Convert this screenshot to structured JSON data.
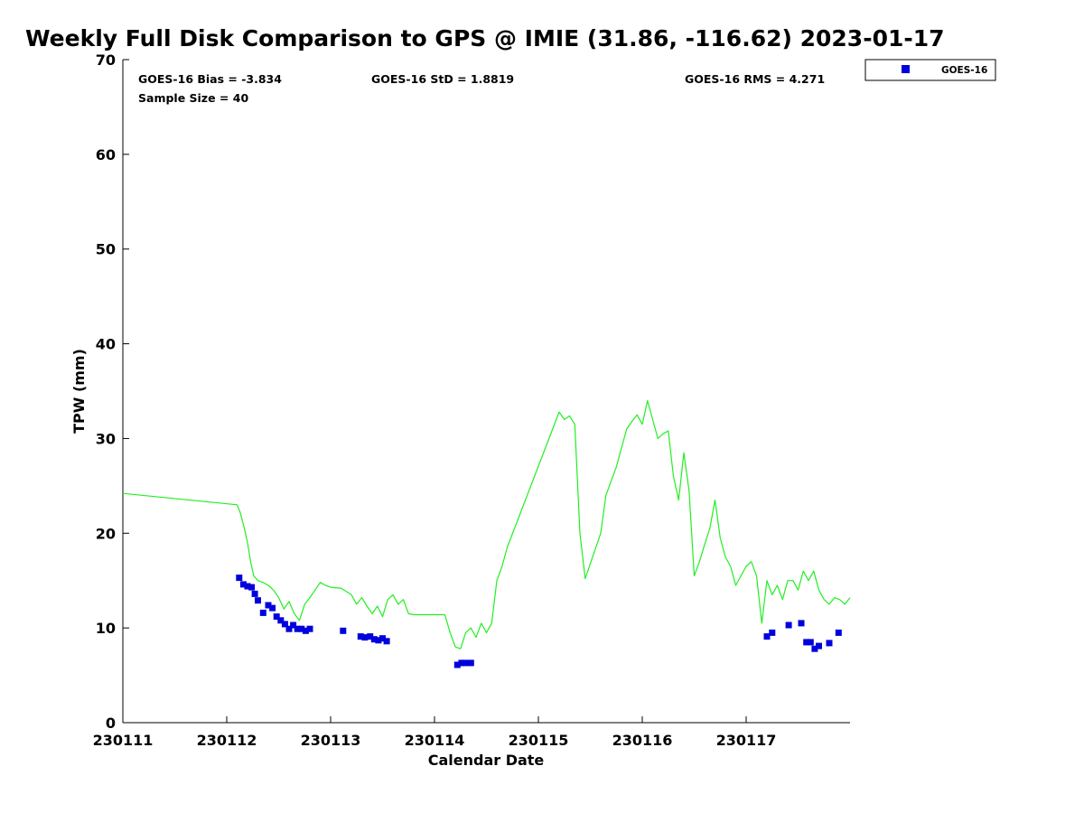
{
  "chart_data": {
    "type": "line+scatter",
    "title": "Weekly Full Disk Comparison to GPS @ IMIE (31.86, -116.62) 2023-01-17",
    "xlabel": "Calendar Date",
    "ylabel": "TPW (mm)",
    "xlim": [
      0,
      7
    ],
    "ylim": [
      0,
      70
    ],
    "x_unit": "days since 230111 00:00",
    "xticks": [
      {
        "v": 0,
        "label": "230111"
      },
      {
        "v": 1,
        "label": "230112"
      },
      {
        "v": 2,
        "label": "230113"
      },
      {
        "v": 3,
        "label": "230114"
      },
      {
        "v": 4,
        "label": "230115"
      },
      {
        "v": 5,
        "label": "230116"
      },
      {
        "v": 6,
        "label": "230117"
      }
    ],
    "yticks": [
      0,
      10,
      20,
      30,
      40,
      50,
      60,
      70
    ],
    "stats": {
      "bias": "GOES-16 Bias = -3.834",
      "std": "GOES-16 StD = 1.8819",
      "rms": "GOES-16 RMS = 4.271",
      "sample": "Sample Size = 40"
    },
    "legend": {
      "label": "GOES-16",
      "position": "outside-top-right"
    },
    "colors": {
      "gps_line": "#22ee22",
      "goes_marker": "#0000dd"
    },
    "gps_line": {
      "name": "GPS",
      "x": [
        0.0,
        1.1,
        1.13,
        1.17,
        1.2,
        1.23,
        1.26,
        1.3,
        1.35,
        1.4,
        1.45,
        1.5,
        1.55,
        1.6,
        1.65,
        1.7,
        1.75,
        1.8,
        1.85,
        1.9,
        1.95,
        2.0,
        2.1,
        2.2,
        2.25,
        2.3,
        2.35,
        2.4,
        2.45,
        2.5,
        2.55,
        2.6,
        2.65,
        2.7,
        2.75,
        2.8,
        2.85,
        2.9,
        3.1,
        3.15,
        3.2,
        3.25,
        3.3,
        3.35,
        3.4,
        3.45,
        3.5,
        3.55,
        3.6,
        3.65,
        3.7,
        4.2,
        4.25,
        4.3,
        4.35,
        4.4,
        4.45,
        4.6,
        4.65,
        4.7,
        4.75,
        4.8,
        4.85,
        4.9,
        4.95,
        5.0,
        5.05,
        5.1,
        5.15,
        5.2,
        5.25,
        5.3,
        5.35,
        5.4,
        5.45,
        5.5,
        5.55,
        5.6,
        5.65,
        5.7,
        5.75,
        5.8,
        5.85,
        5.9,
        6.0,
        6.05,
        6.1,
        6.15,
        6.2,
        6.25,
        6.3,
        6.35,
        6.4,
        6.45,
        6.5,
        6.55,
        6.6,
        6.65,
        6.7,
        6.75,
        6.8,
        6.85,
        6.9,
        6.95,
        7.0
      ],
      "values": [
        24.2,
        23.0,
        22.2,
        20.5,
        19.0,
        17.0,
        15.5,
        15.0,
        14.8,
        14.5,
        14.0,
        13.2,
        12.0,
        12.8,
        11.5,
        10.8,
        12.5,
        13.2,
        14.0,
        14.8,
        14.5,
        14.3,
        14.2,
        13.5,
        12.5,
        13.2,
        12.3,
        11.5,
        12.3,
        11.2,
        13.0,
        13.5,
        12.5,
        13.0,
        11.5,
        11.4,
        11.4,
        11.4,
        11.4,
        9.5,
        8.0,
        7.8,
        9.5,
        10.0,
        9.0,
        10.5,
        9.5,
        10.5,
        15.0,
        16.5,
        18.5,
        32.8,
        32.0,
        32.4,
        31.5,
        20.0,
        15.2,
        20.0,
        24.0,
        25.5,
        27.0,
        29.0,
        31.0,
        31.8,
        32.5,
        31.5,
        34.0,
        32.0,
        30.0,
        30.5,
        30.8,
        26.0,
        23.5,
        28.5,
        24.5,
        15.5,
        17.0,
        18.8,
        20.5,
        23.5,
        19.5,
        17.5,
        16.5,
        14.5,
        16.5,
        17.0,
        15.5,
        10.5,
        15.0,
        13.5,
        14.5,
        13.0,
        15.0,
        15.0,
        14.0,
        16.0,
        15.0,
        16.0,
        14.0,
        13.0,
        12.5,
        13.2,
        13.0,
        12.5,
        13.2
      ]
    },
    "goes_points": {
      "name": "GOES-16",
      "x": [
        1.12,
        1.16,
        1.2,
        1.24,
        1.27,
        1.3,
        1.35,
        1.4,
        1.44,
        1.48,
        1.52,
        1.56,
        1.6,
        1.64,
        1.68,
        1.72,
        1.76,
        1.8,
        2.12,
        2.29,
        2.33,
        2.38,
        2.42,
        2.46,
        2.5,
        2.54,
        3.22,
        3.26,
        3.3,
        3.35,
        6.2,
        6.25,
        6.41,
        6.53,
        6.58,
        6.62,
        6.66,
        6.7,
        6.8,
        6.89
      ],
      "values": [
        15.3,
        14.6,
        14.4,
        14.3,
        13.6,
        12.9,
        11.6,
        12.4,
        12.1,
        11.2,
        10.8,
        10.4,
        9.9,
        10.3,
        9.9,
        9.9,
        9.7,
        9.9,
        9.7,
        9.1,
        9.0,
        9.1,
        8.8,
        8.7,
        8.9,
        8.6,
        6.1,
        6.3,
        6.3,
        6.3,
        9.1,
        9.5,
        10.3,
        10.5,
        8.5,
        8.5,
        7.8,
        8.1,
        8.4,
        9.5
      ]
    }
  }
}
